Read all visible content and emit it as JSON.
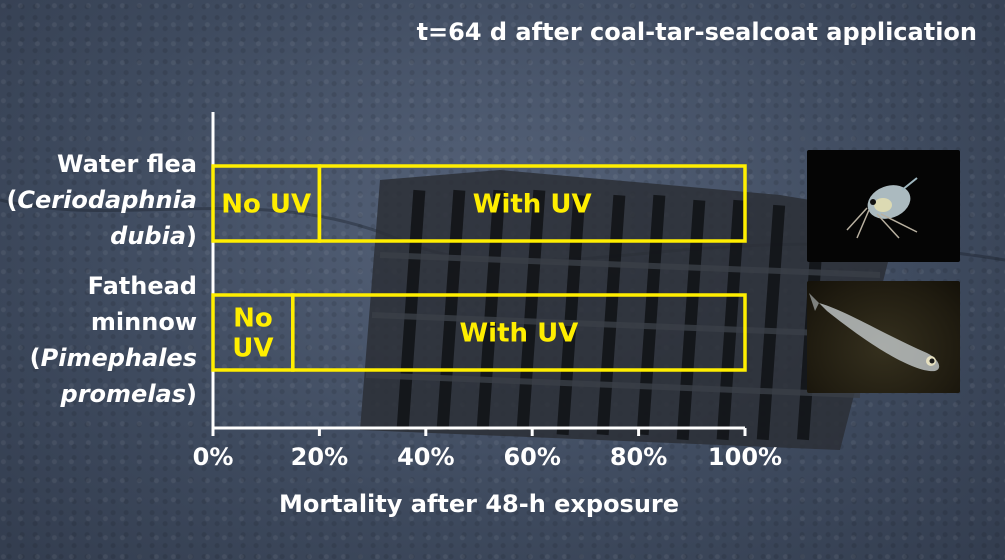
{
  "title": "t=64 d after coal-tar-sealcoat application",
  "chart_data": {
    "type": "bar",
    "orientation": "horizontal",
    "stacked": true,
    "title": "t=64 d after coal-tar-sealcoat application",
    "xlabel": "Mortality after 48-h exposure",
    "ylabel": "",
    "xlim": [
      0,
      100
    ],
    "x_ticks": [
      "0%",
      "20%",
      "40%",
      "60%",
      "80%",
      "100%"
    ],
    "grid": false,
    "categories": [
      {
        "common": "Water flea",
        "sci_open": "(",
        "sci_a": "Ceriodaphnia",
        "sci_b": "dubia",
        "sci_close": ")"
      },
      {
        "line1": "Fathead",
        "line2": "minnow",
        "sci_open": "(",
        "sci_a": "Pimephales",
        "sci_b": "promelas",
        "sci_close": ")"
      }
    ],
    "series": [
      {
        "name": "No UV",
        "values": [
          20,
          15
        ],
        "labels": [
          "No UV",
          "No\nUV"
        ]
      },
      {
        "name": "With UV",
        "values": [
          80,
          85
        ],
        "labels": [
          "With UV",
          "With UV"
        ]
      }
    ],
    "bar_outline_color": "#ffee00",
    "label_color": "#ffee00",
    "axis_color": "#ffffff"
  }
}
